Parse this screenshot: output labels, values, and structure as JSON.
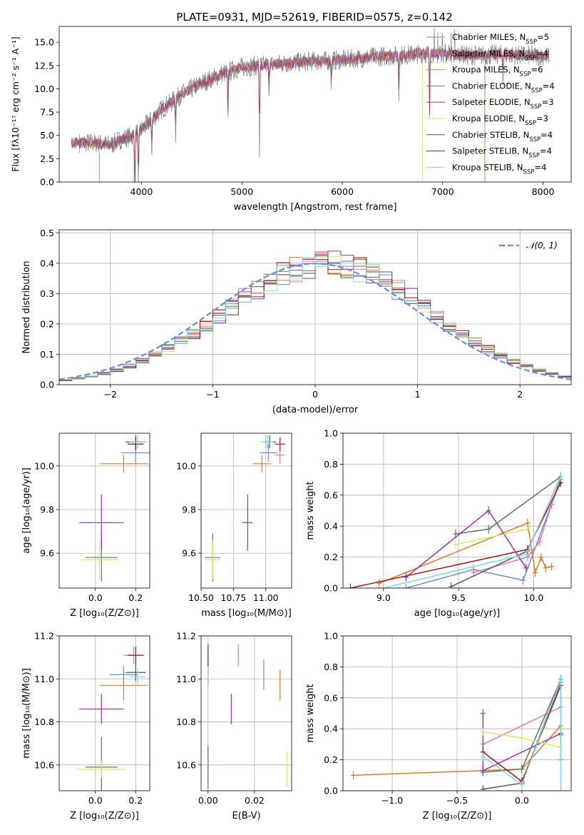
{
  "colors": {
    "chab_miles": "#6a8fd8",
    "salp_miles": "#e07aa8",
    "krou_miles": "#e07b20",
    "chab_elodie": "#5a7a5a",
    "salp_elodie": "#9a30b8",
    "krou_elodie": "#d8e86a",
    "chab_stelib": "#555555",
    "salp_stelib": "#a01818",
    "krou_stelib": "#80d8e0",
    "normal": "#6a8fd8"
  },
  "chart_data": [
    {
      "id": "spectrum",
      "type": "line",
      "title": "PLATE=0931, MJD=52619, FIBERID=0575, z=0.142",
      "xlabel": "wavelength [Angstrom, rest frame]",
      "ylabel": "Flux [fλ10⁻¹⁷ erg cm⁻² s⁻¹ A⁻¹]",
      "xlim": [
        3180,
        8280
      ],
      "ylim": [
        0,
        16.7
      ],
      "xticks": [
        4000,
        5000,
        6000,
        7000,
        8000
      ],
      "yticks": [
        0.0,
        2.5,
        5.0,
        7.5,
        10.0,
        12.5,
        15.0
      ],
      "continuum": [
        [
          3300,
          4.2
        ],
        [
          3500,
          4.2
        ],
        [
          3700,
          4.0
        ],
        [
          3800,
          4.6
        ],
        [
          3900,
          4.9
        ],
        [
          4000,
          5.6
        ],
        [
          4200,
          7.8
        ],
        [
          4400,
          9.4
        ],
        [
          4600,
          10.6
        ],
        [
          4800,
          11.6
        ],
        [
          5000,
          12.3
        ],
        [
          5200,
          12.5
        ],
        [
          5400,
          12.7
        ],
        [
          5600,
          12.9
        ],
        [
          5800,
          13.0
        ],
        [
          6000,
          13.1
        ],
        [
          6200,
          13.3
        ],
        [
          6400,
          13.5
        ],
        [
          6600,
          13.6
        ],
        [
          6800,
          13.8
        ],
        [
          7000,
          13.8
        ],
        [
          7200,
          13.6
        ],
        [
          7400,
          13.6
        ],
        [
          7600,
          13.7
        ],
        [
          7800,
          13.6
        ],
        [
          8060,
          13.5
        ]
      ],
      "legend_position": "right",
      "legend": [
        {
          "label": "Chabrier MILES, N_SSP=5",
          "key": "chab_miles"
        },
        {
          "label": "Salpeter MILES, N_SSP=4",
          "key": "salp_miles"
        },
        {
          "label": "Kroupa MILES, N_SSP=6",
          "key": "krou_miles"
        },
        {
          "label": "Chabrier ELODIE, N_SSP=4",
          "key": "chab_elodie"
        },
        {
          "label": "Salpeter ELODIE, N_SSP=3",
          "key": "salp_elodie"
        },
        {
          "label": "Kroupa ELODIE, N_SSP=3",
          "key": "krou_elodie"
        },
        {
          "label": "Chabrier STELIB, N_SSP=4",
          "key": "chab_stelib"
        },
        {
          "label": "Salpeter STELIB, N_SSP=4",
          "key": "salp_stelib"
        },
        {
          "label": "Kroupa STELIB, N_SSP=4",
          "key": "krou_stelib"
        }
      ]
    },
    {
      "id": "residuals",
      "type": "bar",
      "xlabel": "(data-model)/error",
      "ylabel": "Normed distribution",
      "xlim": [
        -2.5,
        2.5
      ],
      "ylim": [
        0,
        0.51
      ],
      "xticks": [
        -2,
        -1,
        0,
        1,
        2
      ],
      "yticks": [
        0.0,
        0.1,
        0.2,
        0.3,
        0.4,
        0.5
      ],
      "legend": [
        "𝒩(0, 1)"
      ],
      "grid": true
    },
    {
      "id": "age_vs_Z",
      "type": "scatter",
      "xlabel": "Z [log₁₀(Z/Z⊙)]",
      "ylabel": "age  [log₁₀(age/yr)]",
      "xlim": [
        -0.18,
        0.27
      ],
      "ylim": [
        9.44,
        10.15
      ],
      "xticks": [
        0.0,
        0.2
      ],
      "yticks": [
        9.6,
        9.8,
        10.0
      ],
      "points": [
        {
          "key": "chab_miles",
          "x": 0.2,
          "y": 10.06,
          "xerr": 0.07,
          "yerr": 0.05
        },
        {
          "key": "salp_miles",
          "x": 0.2,
          "y": 10.1,
          "xerr": 0.04,
          "yerr": 0.03
        },
        {
          "key": "krou_miles",
          "x": 0.14,
          "y": 10.01,
          "xerr": 0.12,
          "yerr": 0.04
        },
        {
          "key": "chab_elodie",
          "x": 0.03,
          "y": 9.58,
          "xerr": 0.08,
          "yerr": 0.11
        },
        {
          "key": "salp_elodie",
          "x": 0.03,
          "y": 9.74,
          "xerr": 0.11,
          "yerr": 0.13
        },
        {
          "key": "krou_elodie",
          "x": 0.02,
          "y": 9.57,
          "xerr": 0.09,
          "yerr": 0.09
        },
        {
          "key": "chab_stelib",
          "x": 0.2,
          "y": 10.11,
          "xerr": 0.05,
          "yerr": 0.03
        },
        {
          "key": "salp_stelib",
          "x": 0.2,
          "y": 10.1,
          "xerr": 0.04,
          "yerr": 0.03
        },
        {
          "key": "krou_stelib",
          "x": 0.21,
          "y": 10.11,
          "xerr": 0.04,
          "yerr": 0.03
        }
      ]
    },
    {
      "id": "age_vs_mass",
      "type": "scatter",
      "xlabel": "mass [log₁₀(M/M⊙)]",
      "ylabel": "",
      "xlim": [
        10.5,
        11.2
      ],
      "ylim": [
        9.44,
        10.15
      ],
      "xticks": [
        10.5,
        10.75,
        11.0
      ],
      "yticks": [
        9.6,
        9.8,
        10.0
      ],
      "points": [
        {
          "key": "chab_miles",
          "x": 11.02,
          "y": 10.06,
          "xerr": 0.07,
          "yerr": 0.04
        },
        {
          "key": "salp_miles",
          "x": 11.11,
          "y": 10.05,
          "xerr": 0.04,
          "yerr": 0.04
        },
        {
          "key": "krou_miles",
          "x": 10.97,
          "y": 10.01,
          "xerr": 0.07,
          "yerr": 0.04
        },
        {
          "key": "chab_elodie",
          "x": 10.59,
          "y": 9.58,
          "xerr": 0.06,
          "yerr": 0.11
        },
        {
          "key": "salp_elodie",
          "x": 10.86,
          "y": 9.74,
          "xerr": 0.04,
          "yerr": 0.13
        },
        {
          "key": "krou_elodie",
          "x": 10.59,
          "y": 9.57,
          "xerr": 0.06,
          "yerr": 0.09
        },
        {
          "key": "chab_stelib",
          "x": 11.03,
          "y": 10.11,
          "xerr": 0.05,
          "yerr": 0.03
        },
        {
          "key": "salp_stelib",
          "x": 11.11,
          "y": 10.1,
          "xerr": 0.04,
          "yerr": 0.03
        },
        {
          "key": "krou_stelib",
          "x": 11.01,
          "y": 10.11,
          "xerr": 0.05,
          "yerr": 0.03
        }
      ]
    },
    {
      "id": "weight_vs_age",
      "type": "line",
      "xlabel": "age  [log₁₀(age/yr)]",
      "ylabel": "mass weight",
      "xlim": [
        8.73,
        10.25
      ],
      "ylim": [
        0,
        1
      ],
      "xticks": [
        9.0,
        9.5,
        10.0
      ],
      "yticks": [
        0.0,
        0.2,
        0.4,
        0.6,
        0.8,
        1.0
      ],
      "grid": true,
      "series": [
        {
          "key": "chab_miles",
          "x": [
            9.15,
            9.6,
            9.93,
            10.18
          ],
          "y": [
            0.0,
            0.12,
            0.05,
            0.7
          ]
        },
        {
          "key": "salp_miles",
          "x": [
            9.6,
            9.96,
            10.04,
            10.12,
            10.18
          ],
          "y": [
            0.1,
            0.2,
            0.3,
            0.54,
            0.72
          ]
        },
        {
          "key": "krou_miles",
          "x": [
            8.97,
            9.96,
            10.01,
            10.05,
            10.08,
            10.12
          ],
          "y": [
            0.03,
            0.42,
            0.1,
            0.2,
            0.13,
            0.14
          ]
        },
        {
          "key": "chab_elodie",
          "x": [
            9.48,
            9.7,
            10.18
          ],
          "y": [
            0.35,
            0.38,
            0.72
          ]
        },
        {
          "key": "salp_elodie",
          "x": [
            9.15,
            9.7,
            9.95
          ],
          "y": [
            0.07,
            0.5,
            0.13
          ]
        },
        {
          "key": "krou_elodie",
          "x": [
            9.48,
            9.96
          ],
          "y": [
            0.28,
            0.38
          ]
        },
        {
          "key": "chab_stelib",
          "x": [
            9.45,
            9.96,
            10.18
          ],
          "y": [
            0.01,
            0.24,
            0.72
          ]
        },
        {
          "key": "salp_stelib",
          "x": [
            8.78,
            9.96,
            10.18
          ],
          "y": [
            0.0,
            0.25,
            0.68
          ]
        },
        {
          "key": "krou_stelib",
          "x": [
            9.0,
            9.95,
            10.18
          ],
          "y": [
            0.0,
            0.22,
            0.72
          ]
        }
      ]
    },
    {
      "id": "mass_vs_Z",
      "type": "scatter",
      "xlabel": "Z [log₁₀(Z/Z⊙)]",
      "ylabel": "mass [log₁₀(M/M⊙)]",
      "xlim": [
        -0.18,
        0.27
      ],
      "ylim": [
        10.48,
        11.2
      ],
      "xticks": [
        0.0,
        0.2
      ],
      "yticks": [
        10.6,
        10.8,
        11.0,
        11.2
      ],
      "points": [
        {
          "key": "chab_miles",
          "x": 0.14,
          "y": 11.02,
          "xerr": 0.07,
          "yerr": 0.04
        },
        {
          "key": "salp_miles",
          "x": 0.19,
          "y": 11.11,
          "xerr": 0.05,
          "yerr": 0.04
        },
        {
          "key": "krou_miles",
          "x": 0.14,
          "y": 10.97,
          "xerr": 0.12,
          "yerr": 0.07
        },
        {
          "key": "chab_elodie",
          "x": 0.03,
          "y": 10.59,
          "xerr": 0.08,
          "yerr": 0.14
        },
        {
          "key": "salp_elodie",
          "x": 0.03,
          "y": 10.86,
          "xerr": 0.11,
          "yerr": 0.07
        },
        {
          "key": "krou_elodie",
          "x": 0.03,
          "y": 10.58,
          "xerr": 0.12,
          "yerr": 0.04
        },
        {
          "key": "chab_stelib",
          "x": 0.2,
          "y": 11.03,
          "xerr": 0.05,
          "yerr": 0.04
        },
        {
          "key": "salp_stelib",
          "x": 0.2,
          "y": 11.11,
          "xerr": 0.04,
          "yerr": 0.04
        },
        {
          "key": "krou_stelib",
          "x": 0.21,
          "y": 11.01,
          "xerr": 0.04,
          "yerr": 0.04
        }
      ]
    },
    {
      "id": "mass_vs_ebv",
      "type": "scatter",
      "xlabel": "E(B-V)",
      "ylabel": "",
      "xlim": [
        -0.003,
        0.036
      ],
      "ylim": [
        10.48,
        11.2
      ],
      "xticks": [
        0.0,
        0.02
      ],
      "yticks": [
        10.6,
        10.8,
        11.0,
        11.2
      ],
      "points": [
        {
          "key": "chab_miles",
          "x": 0.024,
          "y": 11.02,
          "yerr": 0.07
        },
        {
          "key": "salp_miles",
          "x": 0.013,
          "y": 11.11,
          "yerr": 0.05
        },
        {
          "key": "krou_miles",
          "x": 0.031,
          "y": 10.97,
          "yerr": 0.07
        },
        {
          "key": "chab_elodie",
          "x": 0.0,
          "y": 10.59,
          "yerr": 0.1
        },
        {
          "key": "salp_elodie",
          "x": 0.01,
          "y": 10.86,
          "yerr": 0.07
        },
        {
          "key": "krou_elodie",
          "x": 0.034,
          "y": 10.58,
          "yerr": 0.08
        },
        {
          "key": "chab_stelib",
          "x": 0.0,
          "y": 11.03,
          "yerr": 0.05
        },
        {
          "key": "salp_stelib",
          "x": 0.0,
          "y": 11.11,
          "yerr": 0.05
        },
        {
          "key": "krou_stelib",
          "x": 0.0,
          "y": 11.01,
          "yerr": 0.05
        }
      ]
    },
    {
      "id": "weight_vs_Z",
      "type": "line",
      "xlabel": "Z [log₁₀(Z/Z⊙)]",
      "ylabel": "mass weight",
      "xlim": [
        -1.38,
        0.38
      ],
      "ylim": [
        0,
        1
      ],
      "xticks": [
        -1.0,
        -0.5,
        0.0
      ],
      "yticks": [
        0.0,
        0.2,
        0.4,
        0.6,
        0.8,
        1.0
      ],
      "grid": true,
      "series": [
        {
          "key": "chab_miles",
          "x": [
            0.0,
            0.3,
            0.3
          ],
          "y": [
            0.05,
            0.7,
            0.36
          ]
        },
        {
          "key": "salp_miles",
          "x": [
            -0.3,
            0.3,
            0.3
          ],
          "y": [
            0.3,
            0.54,
            0.72
          ]
        },
        {
          "key": "krou_miles",
          "x": [
            -1.3,
            -0.3,
            0.0,
            0.3,
            0.3
          ],
          "y": [
            0.1,
            0.13,
            0.14,
            0.42,
            0.2
          ]
        },
        {
          "key": "chab_elodie",
          "x": [
            -0.3,
            0.0,
            0.3
          ],
          "y": [
            0.12,
            0.14,
            0.72
          ]
        },
        {
          "key": "salp_elodie",
          "x": [
            -0.3,
            -0.3,
            0.3
          ],
          "y": [
            0.5,
            0.13,
            0.37
          ]
        },
        {
          "key": "krou_elodie",
          "x": [
            -0.3,
            0.0,
            0.3
          ],
          "y": [
            0.38,
            0.34,
            0.28
          ]
        },
        {
          "key": "chab_stelib",
          "x": [
            -0.3,
            0.0,
            0.3
          ],
          "y": [
            0.01,
            0.05,
            0.72
          ]
        },
        {
          "key": "salp_stelib",
          "x": [
            -0.3,
            0.0,
            0.3
          ],
          "y": [
            0.25,
            0.06,
            0.68
          ]
        },
        {
          "key": "krou_stelib",
          "x": [
            -0.3,
            0.0,
            0.3,
            0.3
          ],
          "y": [
            0.22,
            0.04,
            0.72,
            0.0
          ]
        }
      ]
    }
  ]
}
